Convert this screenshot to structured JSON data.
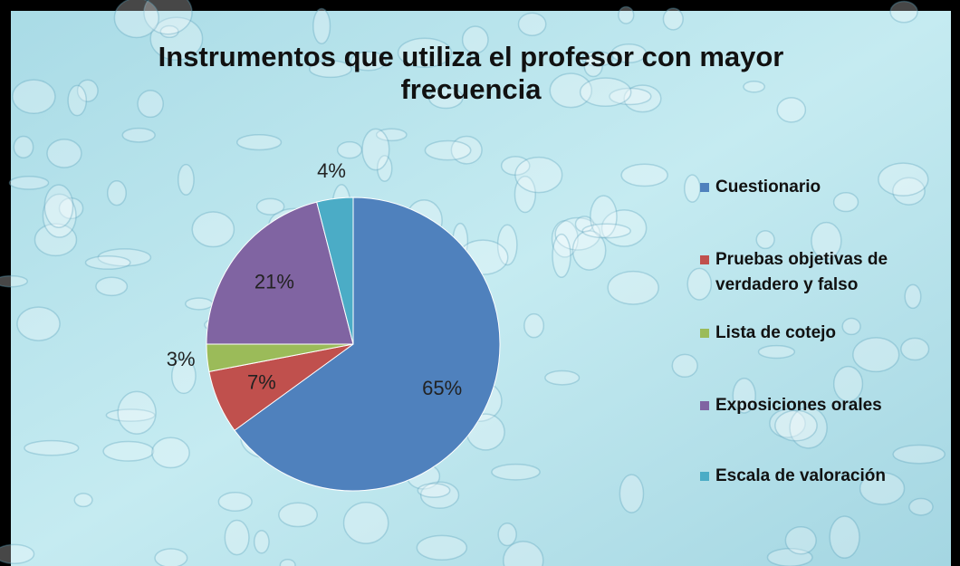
{
  "chart_data": {
    "type": "pie",
    "title": "Instrumentos que utiliza el profesor con mayor frecuencia",
    "categories": [
      "Cuestionario",
      "Pruebas objetivas de verdadero y falso",
      "Lista de cotejo",
      "Exposiciones orales",
      "Escala de valoración"
    ],
    "values": [
      65,
      7,
      3,
      21,
      4
    ],
    "value_labels": [
      "65%",
      "7%",
      "3%",
      "21%",
      "4%"
    ],
    "colors": [
      "#4f81bd",
      "#c0504d",
      "#9bbb59",
      "#8064a2",
      "#4bacc6"
    ],
    "legend": "right"
  }
}
